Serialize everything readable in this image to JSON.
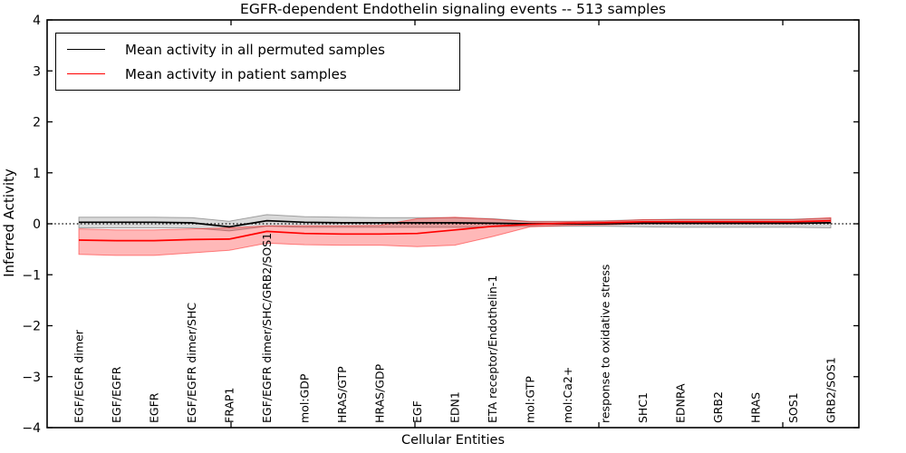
{
  "title": "EGFR-dependent Endothelin signaling events -- 513 samples",
  "axes": {
    "ylabel": "Inferred Activity",
    "xlabel": "Cellular Entities",
    "y_tick_labels": [
      "4",
      "3",
      "2",
      "1",
      "0",
      "−1",
      "−2",
      "−3",
      "−4"
    ]
  },
  "legend": [
    {
      "label": "Mean activity in all permuted samples",
      "color": "#000000"
    },
    {
      "label": "Mean activity in patient samples",
      "color": "#ff0000"
    }
  ],
  "chart_data": {
    "type": "line",
    "title": "EGFR-dependent Endothelin signaling events -- 513 samples",
    "xlabel": "Cellular Entities",
    "ylabel": "Inferred Activity",
    "ylim": [
      -4,
      4
    ],
    "grid": false,
    "legend_position": "upper left",
    "zero_reference_line": "dotted",
    "categories": [
      "EGF/EGFR dimer",
      "EGF/EGFR",
      "EGFR",
      "EGF/EGFR dimer/SHC",
      "FRAP1",
      "EGF/EGFR dimer/SHC/GRB2/SOS1",
      "mol:GDP",
      "HRAS/GTP",
      "HRAS/GDP",
      "EGF",
      "EDN1",
      "ETA receptor/Endothelin-1",
      "mol:GTP",
      "mol:Ca2+",
      "response to oxidative stress",
      "SHC1",
      "EDNRA",
      "GRB2",
      "HRAS",
      "SOS1",
      "GRB2/SOS1"
    ],
    "series": [
      {
        "name": "Mean activity in all permuted samples",
        "color": "#000000",
        "band_color": "#000000",
        "band_alpha": 0.15,
        "values": [
          0.03,
          0.03,
          0.03,
          0.02,
          -0.06,
          0.06,
          0.03,
          0.02,
          0.02,
          0.02,
          0.02,
          0.01,
          0.0,
          0.0,
          0.0,
          0.01,
          0.01,
          0.01,
          0.01,
          0.01,
          0.02
        ],
        "band_upper": [
          0.13,
          0.13,
          0.13,
          0.12,
          0.05,
          0.18,
          0.14,
          0.13,
          0.12,
          0.12,
          0.12,
          0.1,
          0.05,
          0.05,
          0.06,
          0.08,
          0.09,
          0.09,
          0.09,
          0.09,
          0.11
        ],
        "band_lower": [
          -0.08,
          -0.08,
          -0.08,
          -0.08,
          -0.14,
          -0.05,
          -0.07,
          -0.07,
          -0.07,
          -0.07,
          -0.07,
          -0.06,
          -0.05,
          -0.05,
          -0.05,
          -0.06,
          -0.07,
          -0.07,
          -0.07,
          -0.07,
          -0.08
        ]
      },
      {
        "name": "Mean activity in patient samples",
        "color": "#ff0000",
        "band_color": "#ff0000",
        "band_alpha": 0.28,
        "values": [
          -0.32,
          -0.33,
          -0.33,
          -0.31,
          -0.3,
          -0.15,
          -0.19,
          -0.2,
          -0.2,
          -0.19,
          -0.12,
          -0.05,
          -0.01,
          0.01,
          0.02,
          0.04,
          0.04,
          0.04,
          0.04,
          0.04,
          0.06
        ],
        "band_upper": [
          -0.1,
          -0.12,
          -0.12,
          -0.1,
          -0.08,
          -0.04,
          -0.04,
          -0.04,
          -0.03,
          0.1,
          0.13,
          0.09,
          0.04,
          0.04,
          0.05,
          0.08,
          0.08,
          0.08,
          0.08,
          0.08,
          0.12
        ],
        "band_lower": [
          -0.6,
          -0.62,
          -0.62,
          -0.57,
          -0.52,
          -0.38,
          -0.41,
          -0.42,
          -0.42,
          -0.45,
          -0.42,
          -0.25,
          -0.06,
          -0.03,
          -0.02,
          0.0,
          0.0,
          0.0,
          0.0,
          0.0,
          0.02
        ]
      }
    ]
  }
}
